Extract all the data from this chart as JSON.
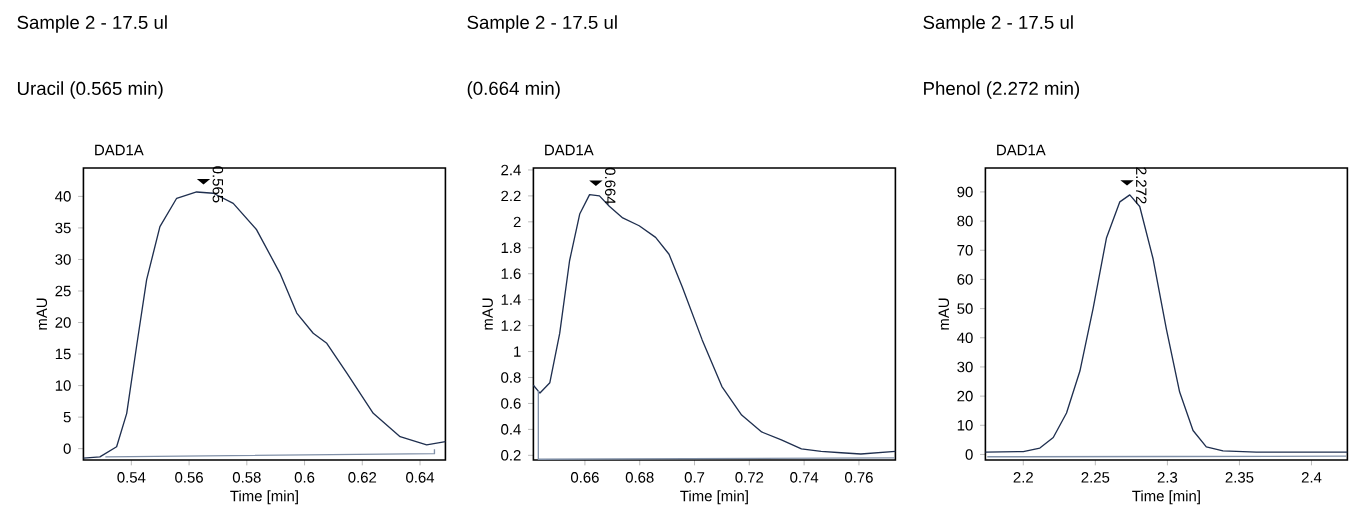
{
  "chart_data": [
    {
      "type": "line",
      "title": "Sample 2 - 17.5 ul",
      "subtitle": "Uracil (0.565 min)",
      "xlabel": "Time [min]",
      "ylabel": "mAU",
      "annotations": [
        "DAD1A",
        {
          "text": "0.565",
          "x": 0.565,
          "y": 41.9
        }
      ],
      "series": [
        {
          "color": "#1f2f4f",
          "x": [
            0.5234,
            0.5291,
            0.5349,
            0.5384,
            0.5418,
            0.5453,
            0.5499,
            0.5557,
            0.5626,
            0.5684,
            0.5753,
            0.5834,
            0.5915,
            0.5973,
            0.603,
            0.6077,
            0.6146,
            0.6238,
            0.6331,
            0.6423,
            0.6488
          ],
          "values": [
            -1.5,
            -1.3,
            0.3,
            5.6,
            16.2,
            26.8,
            35.2,
            39.7,
            40.7,
            40.5,
            38.9,
            34.7,
            27.8,
            21.5,
            18.3,
            16.7,
            12.0,
            5.6,
            1.9,
            0.6,
            1.1
          ]
        },
        {
          "color": "#8090a8",
          "x": [
            0.531,
            0.645,
            0.645
          ],
          "values": [
            -1.3,
            -0.8,
            -0.1
          ]
        }
      ],
      "xlim": [
        0.5234,
        0.6488
      ],
      "ylim": [
        -1.8,
        44.5
      ],
      "xticks": [
        0.54,
        0.56,
        0.58,
        0.6,
        0.62,
        0.64
      ],
      "yticks": [
        0,
        5,
        10,
        15,
        20,
        25,
        30,
        35,
        40
      ]
    },
    {
      "type": "line",
      "title": "Sample 2 - 17.5 ul",
      "subtitle": "(0.664 min)",
      "xlabel": "Time [min]",
      "ylabel": "mAU",
      "annotations": [
        "DAD1A",
        {
          "text": "0.664",
          "x": 0.664,
          "y": 2.277
        }
      ],
      "series": [
        {
          "color": "#1f2f4f",
          "x": [
            0.6412,
            0.6436,
            0.6472,
            0.6508,
            0.6544,
            0.6581,
            0.6617,
            0.6653,
            0.6689,
            0.6738,
            0.6798,
            0.6858,
            0.6907,
            0.6955,
            0.7028,
            0.71,
            0.7172,
            0.7245,
            0.7317,
            0.739,
            0.7462,
            0.7535,
            0.7607,
            0.7733
          ],
          "values": [
            0.74,
            0.68,
            0.76,
            1.14,
            1.7,
            2.06,
            2.21,
            2.2,
            2.12,
            2.03,
            1.97,
            1.88,
            1.75,
            1.5,
            1.09,
            0.73,
            0.51,
            0.38,
            0.32,
            0.25,
            0.23,
            0.22,
            0.21,
            0.23
          ]
        },
        {
          "color": "#8090a8",
          "x": [
            0.643,
            0.643,
            0.773
          ],
          "values": [
            0.7,
            0.17,
            0.18
          ]
        }
      ],
      "xlim": [
        0.6412,
        0.7733
      ],
      "ylim": [
        0.164,
        2.415
      ],
      "xticks": [
        0.66,
        0.68,
        0.7,
        0.72,
        0.74,
        0.76
      ],
      "yticks": [
        0.2,
        0.4,
        0.6,
        0.8,
        1,
        1.2,
        1.4,
        1.6,
        1.8,
        2,
        2.2,
        2.4
      ]
    },
    {
      "type": "line",
      "title": "Sample 2 - 17.5 ul",
      "subtitle": "Phenol (2.272 min)",
      "xlabel": "Time [min]",
      "ylabel": "mAU",
      "annotations": [
        "DAD1A",
        {
          "text": "2.272",
          "x": 2.272,
          "y": 92.2
        }
      ],
      "series": [
        {
          "color": "#1f2f4f",
          "x": [
            2.1737,
            2.2,
            2.2115,
            2.2208,
            2.23,
            2.2393,
            2.2485,
            2.2577,
            2.267,
            2.2739,
            2.2808,
            2.2901,
            2.2993,
            2.3085,
            2.3178,
            2.327,
            2.3386,
            2.3617,
            2.4249
          ],
          "values": [
            0.8,
            1.0,
            2.2,
            5.8,
            14.2,
            28.6,
            50.2,
            74.2,
            86.6,
            89.0,
            85.0,
            67.0,
            43.0,
            21.4,
            8.2,
            2.6,
            1.2,
            0.8,
            0.8
          ]
        },
        {
          "color": "#8090a8",
          "x": [
            2.175,
            2.3,
            2.424
          ],
          "values": [
            -0.8,
            -0.7,
            -0.6
          ]
        }
      ],
      "xlim": [
        2.1737,
        2.4249
      ],
      "ylim": [
        -1.9,
        98.2
      ],
      "xticks": [
        2.2,
        2.25,
        2.3,
        2.35,
        2.4
      ],
      "yticks": [
        0,
        10,
        20,
        30,
        40,
        50,
        60,
        70,
        80,
        90
      ]
    }
  ]
}
